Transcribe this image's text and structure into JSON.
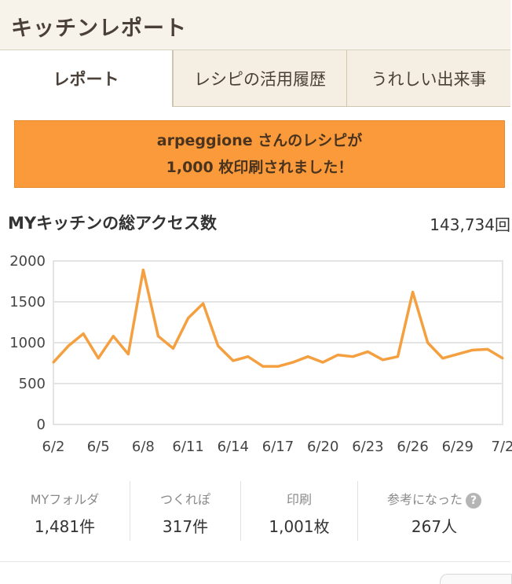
{
  "header": {
    "title": "キッチンレポート"
  },
  "tabs": [
    {
      "label": "レポート",
      "active": true
    },
    {
      "label": "レシピの活用履歴",
      "active": false
    },
    {
      "label": "うれしい出来事",
      "active": false
    }
  ],
  "banner": {
    "line1": "arpeggione さんのレシピが",
    "line2": "1,000 枚印刷されました！",
    "color": "#fb9a3a"
  },
  "access": {
    "label": "MYキッチンの総アクセス数",
    "value": "143,734回"
  },
  "chart_data": {
    "type": "line",
    "x": [
      "6/2",
      "6/3",
      "6/4",
      "6/5",
      "6/6",
      "6/7",
      "6/8",
      "6/9",
      "6/10",
      "6/11",
      "6/12",
      "6/13",
      "6/14",
      "6/15",
      "6/16",
      "6/17",
      "6/18",
      "6/19",
      "6/20",
      "6/21",
      "6/22",
      "6/23",
      "6/24",
      "6/25",
      "6/26",
      "6/27",
      "6/28",
      "6/29",
      "6/30",
      "7/1",
      "7/2"
    ],
    "series": [
      {
        "values": [
          760,
          960,
          1110,
          810,
          1080,
          860,
          1890,
          1080,
          930,
          1300,
          1480,
          960,
          780,
          830,
          710,
          710,
          760,
          830,
          760,
          850,
          830,
          890,
          790,
          830,
          1620,
          1000,
          810,
          860,
          910,
          920,
          810
        ],
        "color": "#f5a040"
      }
    ],
    "x_tick_labels": [
      "6/2",
      "6/5",
      "6/8",
      "6/11",
      "6/14",
      "6/17",
      "6/20",
      "6/23",
      "6/26",
      "6/29",
      "7/2"
    ],
    "y_tick_labels": [
      "0",
      "500",
      "1000",
      "1500",
      "2000"
    ],
    "ylim": [
      0,
      2000
    ],
    "grid": true,
    "title": "",
    "xlabel": "",
    "ylabel": ""
  },
  "stats": [
    {
      "label": "MYフォルダ",
      "value": "1,481件"
    },
    {
      "label": "つくれぽ",
      "value": "317件"
    },
    {
      "label": "印刷",
      "value": "1,001枚"
    },
    {
      "label": "参考になった",
      "value": "267人",
      "help": "?"
    }
  ]
}
